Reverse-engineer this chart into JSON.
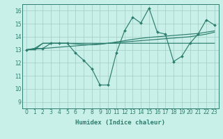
{
  "x": [
    0,
    1,
    2,
    3,
    4,
    5,
    6,
    7,
    8,
    9,
    10,
    11,
    12,
    13,
    14,
    15,
    16,
    17,
    18,
    19,
    20,
    21,
    22,
    23
  ],
  "zigzag": [
    13.0,
    13.1,
    13.1,
    13.5,
    13.5,
    13.5,
    12.75,
    12.2,
    11.55,
    10.3,
    10.3,
    12.75,
    14.45,
    15.5,
    15.05,
    16.2,
    14.35,
    14.2,
    12.1,
    12.5,
    13.5,
    14.2,
    15.3,
    14.9
  ],
  "flat_upper": [
    13.0,
    13.0,
    13.5,
    13.5,
    13.5,
    13.5,
    13.5,
    13.5,
    13.5,
    13.5,
    13.5,
    13.5,
    13.5,
    13.5,
    13.5,
    13.5,
    13.5,
    13.5,
    13.5,
    13.5,
    13.5,
    13.5,
    13.5,
    13.5
  ],
  "trend_lower": [
    13.0,
    13.05,
    13.1,
    13.15,
    13.2,
    13.25,
    13.3,
    13.35,
    13.4,
    13.45,
    13.5,
    13.55,
    13.6,
    13.65,
    13.7,
    13.75,
    13.8,
    13.85,
    13.9,
    13.95,
    14.0,
    14.1,
    14.2,
    14.35
  ],
  "trend_upper": [
    13.0,
    13.1,
    13.5,
    13.5,
    13.5,
    13.5,
    13.45,
    13.4,
    13.38,
    13.42,
    13.5,
    13.6,
    13.7,
    13.8,
    13.88,
    13.95,
    14.0,
    14.05,
    14.1,
    14.15,
    14.2,
    14.25,
    14.35,
    14.45
  ],
  "line_color": "#2d7d6e",
  "bg_color": "#c8f0e8",
  "grid_color": "#a0ccc4",
  "xlabel": "Humidex (Indice chaleur)",
  "ylim": [
    8.5,
    16.5
  ],
  "xlim": [
    -0.5,
    23.5
  ],
  "yticks": [
    9,
    10,
    11,
    12,
    13,
    14,
    15,
    16
  ],
  "xticks": [
    0,
    1,
    2,
    3,
    4,
    5,
    6,
    7,
    8,
    9,
    10,
    11,
    12,
    13,
    14,
    15,
    16,
    17,
    18,
    19,
    20,
    21,
    22,
    23
  ]
}
